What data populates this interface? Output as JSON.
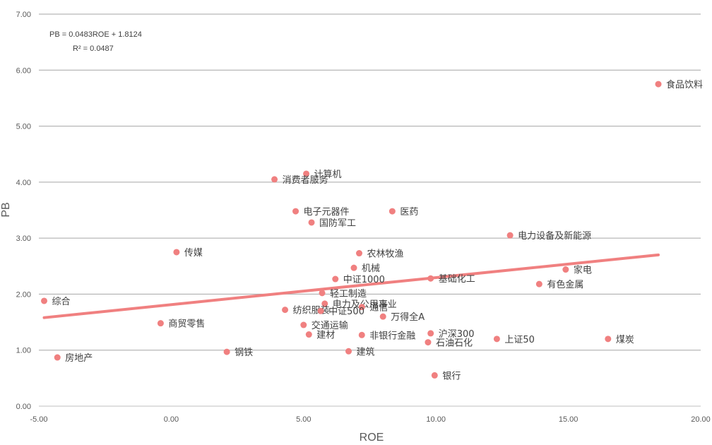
{
  "chart_data": {
    "type": "scatter",
    "xlabel": "ROE",
    "ylabel": "PB",
    "xlim": [
      -5,
      20
    ],
    "ylim": [
      0,
      7
    ],
    "x_ticks": [
      "-5.00",
      "0.00",
      "5.00",
      "10.00",
      "15.00",
      "20.00"
    ],
    "y_ticks": [
      "0.00",
      "1.00",
      "2.00",
      "3.00",
      "4.00",
      "5.00",
      "6.00",
      "7.00"
    ],
    "grid": "horizontal",
    "marker_color": "#F08080",
    "trendline_color": "#F08080",
    "trendline": {
      "slope": 0.0483,
      "intercept": 1.8124,
      "x_range": [
        -4.8,
        18.4
      ]
    },
    "equation": "PB = 0.0483ROE + 1.8124",
    "r_squared": "R² = 0.0487",
    "points": [
      {
        "label": "食品饮料",
        "x": 18.4,
        "y": 5.75
      },
      {
        "label": "计算机",
        "x": 5.1,
        "y": 4.15
      },
      {
        "label": "消费者服务",
        "x": 3.9,
        "y": 4.05
      },
      {
        "label": "电子元器件",
        "x": 4.7,
        "y": 3.48
      },
      {
        "label": "医药",
        "x": 8.35,
        "y": 3.48
      },
      {
        "label": "国防军工",
        "x": 5.3,
        "y": 3.28
      },
      {
        "label": "电力设备及新能源",
        "x": 12.8,
        "y": 3.05
      },
      {
        "label": "传媒",
        "x": 0.2,
        "y": 2.75
      },
      {
        "label": "农林牧渔",
        "x": 7.1,
        "y": 2.73
      },
      {
        "label": "机械",
        "x": 6.9,
        "y": 2.47
      },
      {
        "label": "家电",
        "x": 14.9,
        "y": 2.44
      },
      {
        "label": "中证1000",
        "x": 6.2,
        "y": 2.27
      },
      {
        "label": "基础化工",
        "x": 9.8,
        "y": 2.28
      },
      {
        "label": "有色金属",
        "x": 13.9,
        "y": 2.18
      },
      {
        "label": "轻工制造",
        "x": 5.7,
        "y": 2.02
      },
      {
        "label": "综合",
        "x": -4.8,
        "y": 1.88
      },
      {
        "label": "电力及公用事业",
        "x": 5.8,
        "y": 1.83
      },
      {
        "label": "通信",
        "x": 7.2,
        "y": 1.77
      },
      {
        "label": "纺织服装",
        "x": 4.3,
        "y": 1.72
      },
      {
        "label": "中证500",
        "x": 5.65,
        "y": 1.7
      },
      {
        "label": "万得全A",
        "x": 8.0,
        "y": 1.6
      },
      {
        "label": "商贸零售",
        "x": -0.4,
        "y": 1.48
      },
      {
        "label": "交通运输",
        "x": 5.0,
        "y": 1.45
      },
      {
        "label": "沪深300",
        "x": 9.8,
        "y": 1.3
      },
      {
        "label": "建材",
        "x": 5.2,
        "y": 1.28
      },
      {
        "label": "非银行金融",
        "x": 7.2,
        "y": 1.27
      },
      {
        "label": "上证50",
        "x": 12.3,
        "y": 1.2
      },
      {
        "label": "煤炭",
        "x": 16.5,
        "y": 1.2
      },
      {
        "label": "石油石化",
        "x": 9.7,
        "y": 1.14
      },
      {
        "label": "钢铁",
        "x": 2.1,
        "y": 0.97
      },
      {
        "label": "建筑",
        "x": 6.7,
        "y": 0.98
      },
      {
        "label": "房地产",
        "x": -4.3,
        "y": 0.87
      },
      {
        "label": "银行",
        "x": 9.95,
        "y": 0.55
      }
    ]
  }
}
